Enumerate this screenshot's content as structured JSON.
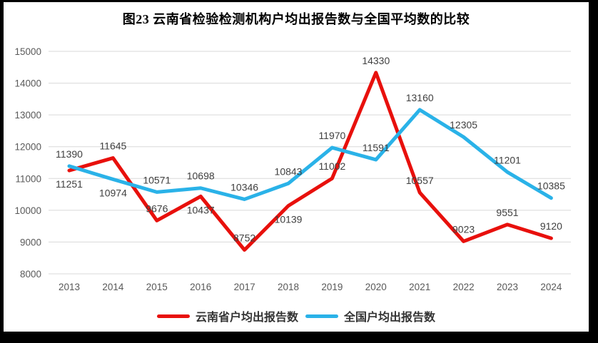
{
  "title": "图23 云南省检验检测机构户均出报告数与全国平均数的比较",
  "legend": [
    {
      "label": "云南省户均出报告数",
      "color": "#e8100c"
    },
    {
      "label": "全国户均出报告数",
      "color": "#2ab2e8"
    }
  ],
  "chart_data": {
    "type": "line",
    "title": "图23 云南省检验检测机构户均出报告数与全国平均数的比较",
    "categories": [
      "2013",
      "2014",
      "2015",
      "2016",
      "2017",
      "2018",
      "2019",
      "2020",
      "2021",
      "2022",
      "2023",
      "2024"
    ],
    "series": [
      {
        "name": "云南省户均出报告数",
        "color": "#e8100c",
        "values": [
          11251,
          11645,
          9676,
          10437,
          8752,
          10139,
          11002,
          14330,
          10557,
          9023,
          9551,
          9120
        ],
        "label_positions": [
          "below",
          "above",
          "above",
          "below",
          "above",
          "below",
          "above",
          "above",
          "above",
          "above",
          "above",
          "above"
        ]
      },
      {
        "name": "全国户均出报告数",
        "color": "#2ab2e8",
        "values": [
          11390,
          10974,
          10571,
          10698,
          10346,
          10843,
          11970,
          11591,
          13160,
          12305,
          11201,
          10385
        ],
        "label_positions": [
          "above",
          "below",
          "above",
          "above",
          "above",
          "above",
          "above",
          "above",
          "above",
          "above",
          "above",
          "above"
        ]
      }
    ],
    "ylim": [
      8000,
      15000
    ],
    "yticks": [
      8000,
      9000,
      10000,
      11000,
      12000,
      13000,
      14000,
      15000
    ],
    "xlabel": "",
    "ylabel": "",
    "grid": true,
    "grid_color": "#d9d9d9",
    "legend_position": "bottom",
    "data_labels": true
  }
}
